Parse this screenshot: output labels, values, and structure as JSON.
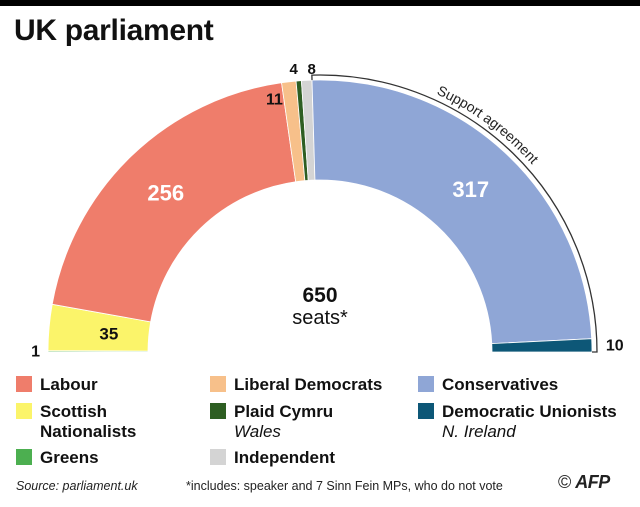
{
  "title": "UK parliament",
  "chart_data": {
    "type": "pie",
    "layout": "half-donut parliament",
    "total_label_value": "650",
    "total_label_unit": "seats*",
    "parties": [
      {
        "name": "Greens",
        "seats": 1,
        "label": "1",
        "color": "#4caf50"
      },
      {
        "name": "Scottish Nationalists",
        "seats": 35,
        "label": "35",
        "color": "#fbf46a"
      },
      {
        "name": "Labour",
        "seats": 256,
        "label": "256",
        "color": "#ef7d6b"
      },
      {
        "name": "Liberal Democrats",
        "seats": 11,
        "label": "11",
        "color": "#f7c08a"
      },
      {
        "name": "Plaid Cymru",
        "seats": 4,
        "label": "4",
        "color": "#2e5e22"
      },
      {
        "name": "Independent",
        "seats": 8,
        "label": "8",
        "color": "#d4d4d4"
      },
      {
        "name": "Conservatives",
        "seats": 317,
        "label": "317",
        "color": "#8fa6d6"
      },
      {
        "name": "Democratic Unionists",
        "seats": 10,
        "label": "10",
        "color": "#0d5777"
      }
    ],
    "annotation": "Support agreement"
  },
  "legend": [
    {
      "label": "Labour",
      "sub": "",
      "color": "#ef7d6b"
    },
    {
      "label": "Liberal Democrats",
      "sub": "",
      "color": "#f7c08a"
    },
    {
      "label": "Conservatives",
      "sub": "",
      "color": "#8fa6d6"
    },
    {
      "label": "Scottish Nationalists",
      "sub": "",
      "color": "#fbf46a"
    },
    {
      "label": "Plaid Cymru",
      "sub": "Wales",
      "color": "#2e5e22"
    },
    {
      "label": "Democratic Unionists",
      "sub": "N. Ireland",
      "color": "#0d5777"
    },
    {
      "label": "Greens",
      "sub": "",
      "color": "#4caf50"
    },
    {
      "label": "Independent",
      "sub": "",
      "color": "#d4d4d4"
    }
  ],
  "footer": {
    "source": "Source: parliament.uk",
    "note": "*includes: speaker and 7 Sinn Fein MPs, who do not vote",
    "copyright": "©",
    "logo": "AFP"
  }
}
